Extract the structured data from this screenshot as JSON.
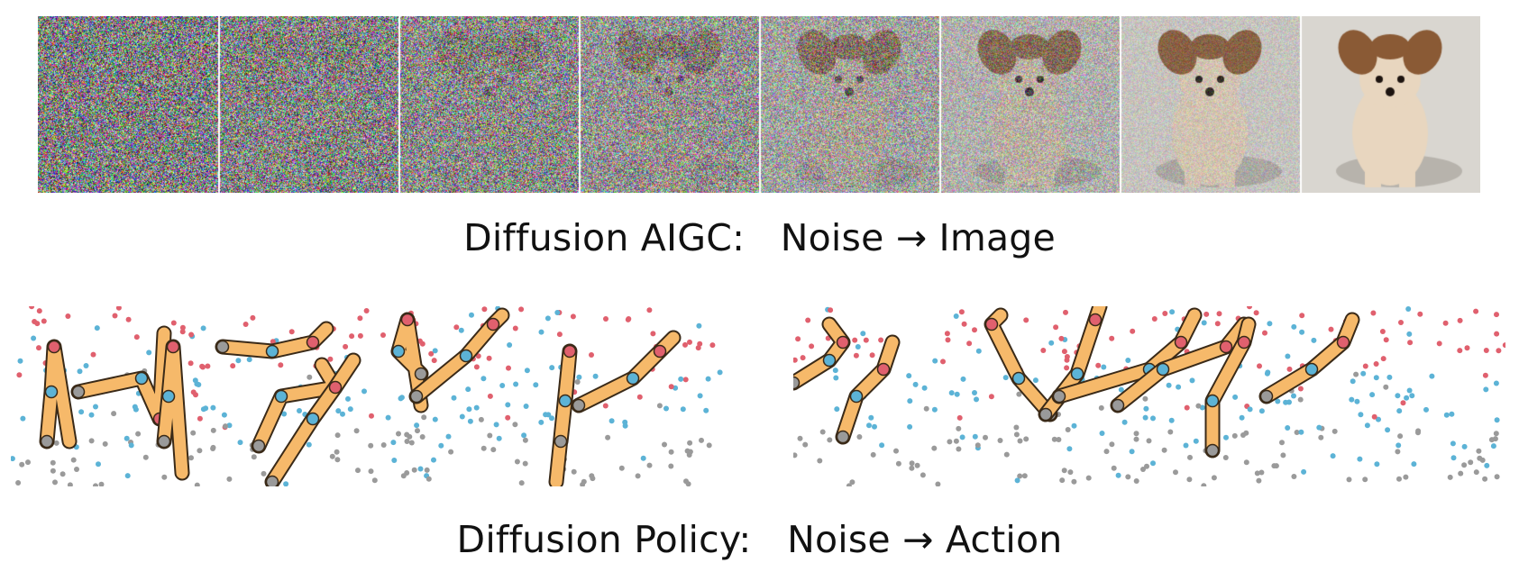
{
  "aigc_caption": "Diffusion AIGC:   Noise → Image",
  "policy_caption": "Diffusion Policy:   Noise → Action",
  "denoising_frames": [
    {
      "step": 1,
      "noise_level": 1.0
    },
    {
      "step": 2,
      "noise_level": 0.95
    },
    {
      "step": 3,
      "noise_level": 0.88
    },
    {
      "step": 4,
      "noise_level": 0.78
    },
    {
      "step": 5,
      "noise_level": 0.62
    },
    {
      "step": 6,
      "noise_level": 0.45
    },
    {
      "step": 7,
      "noise_level": 0.22
    },
    {
      "step": 8,
      "noise_level": 0.0
    }
  ],
  "colors": {
    "arm_fill": "#f6b96a",
    "arm_stroke": "#3a2a18",
    "dot_red": "#e0606e",
    "dot_blue": "#5cb3d6",
    "dot_gray": "#9a9a9a",
    "dog_fur": "#e8d6bf",
    "dog_ears": "#8a5a35",
    "photo_bg": "#d9d6d0"
  },
  "icons": {
    "arrow": "right-arrow-icon",
    "dog": "dog-photo"
  }
}
